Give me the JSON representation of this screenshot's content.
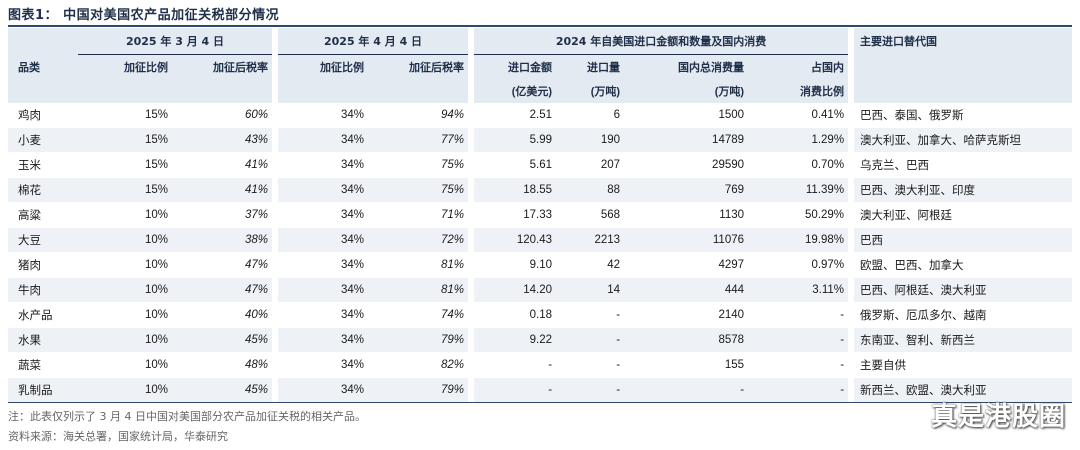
{
  "title": "图表1：  中国对美国农产品加征关税部分情况",
  "header": {
    "category": "品类",
    "group_mar4": "2025 年 3 月 4 日",
    "group_apr4": "2025 年 4 月 4 日",
    "group_2024": "2024 年自美国进口金额和数量及国内消费",
    "alternatives": "主要进口替代国",
    "tariff_rate": "加征比例",
    "post_tariff_rate": "加征后税率",
    "import_value_1": "进口金额",
    "import_value_2": "(亿美元)",
    "import_volume_1": "进口量",
    "import_volume_2": "(万吨)",
    "domestic_consumption_1": "国内总消费量",
    "domestic_consumption_2": "(万吨)",
    "consumption_share_1": "占国内",
    "consumption_share_2": "消费比例"
  },
  "rows": [
    {
      "category": "鸡肉",
      "mar_rate": "15%",
      "mar_total": "60%",
      "apr_rate": "34%",
      "apr_total": "94%",
      "import_value": "2.51",
      "import_volume": "6",
      "consumption": "1500",
      "share": "0.41%",
      "alternatives": "巴西、泰国、俄罗斯"
    },
    {
      "category": "小麦",
      "mar_rate": "15%",
      "mar_total": "43%",
      "apr_rate": "34%",
      "apr_total": "77%",
      "import_value": "5.99",
      "import_volume": "190",
      "consumption": "14789",
      "share": "1.29%",
      "alternatives": "澳大利亚、加拿大、哈萨克斯坦"
    },
    {
      "category": "玉米",
      "mar_rate": "15%",
      "mar_total": "41%",
      "apr_rate": "34%",
      "apr_total": "75%",
      "import_value": "5.61",
      "import_volume": "207",
      "consumption": "29590",
      "share": "0.70%",
      "alternatives": "乌克兰、巴西"
    },
    {
      "category": "棉花",
      "mar_rate": "15%",
      "mar_total": "41%",
      "apr_rate": "34%",
      "apr_total": "75%",
      "import_value": "18.55",
      "import_volume": "88",
      "consumption": "769",
      "share": "11.39%",
      "alternatives": "巴西、澳大利亚、印度"
    },
    {
      "category": "高粱",
      "mar_rate": "10%",
      "mar_total": "37%",
      "apr_rate": "34%",
      "apr_total": "71%",
      "import_value": "17.33",
      "import_volume": "568",
      "consumption": "1130",
      "share": "50.29%",
      "alternatives": "澳大利亚、阿根廷"
    },
    {
      "category": "大豆",
      "mar_rate": "10%",
      "mar_total": "38%",
      "apr_rate": "34%",
      "apr_total": "72%",
      "import_value": "120.43",
      "import_volume": "2213",
      "consumption": "11076",
      "share": "19.98%",
      "alternatives": "巴西"
    },
    {
      "category": "猪肉",
      "mar_rate": "10%",
      "mar_total": "47%",
      "apr_rate": "34%",
      "apr_total": "81%",
      "import_value": "9.10",
      "import_volume": "42",
      "consumption": "4297",
      "share": "0.97%",
      "alternatives": "欧盟、巴西、加拿大"
    },
    {
      "category": "牛肉",
      "mar_rate": "10%",
      "mar_total": "47%",
      "apr_rate": "34%",
      "apr_total": "81%",
      "import_value": "14.20",
      "import_volume": "14",
      "consumption": "444",
      "share": "3.11%",
      "alternatives": "巴西、阿根廷、澳大利亚"
    },
    {
      "category": "水产品",
      "mar_rate": "10%",
      "mar_total": "40%",
      "apr_rate": "34%",
      "apr_total": "74%",
      "import_value": "0.18",
      "import_volume": "-",
      "consumption": "2140",
      "share": "-",
      "alternatives": "俄罗斯、厄瓜多尔、越南"
    },
    {
      "category": "水果",
      "mar_rate": "10%",
      "mar_total": "45%",
      "apr_rate": "34%",
      "apr_total": "79%",
      "import_value": "9.22",
      "import_volume": "-",
      "consumption": "8578",
      "share": "-",
      "alternatives": "东南亚、智利、新西兰"
    },
    {
      "category": "蔬菜",
      "mar_rate": "10%",
      "mar_total": "48%",
      "apr_rate": "34%",
      "apr_total": "82%",
      "import_value": "-",
      "import_volume": "-",
      "consumption": "155",
      "share": "-",
      "alternatives": "主要自供"
    },
    {
      "category": "乳制品",
      "mar_rate": "10%",
      "mar_total": "45%",
      "apr_rate": "34%",
      "apr_total": "79%",
      "import_value": "-",
      "import_volume": "-",
      "consumption": "-",
      "share": "-",
      "alternatives": "新西兰、欧盟、澳大利亚"
    }
  ],
  "notes": {
    "note": "注：此表仅列示了 3 月 4 日中国对美国部分农产品加征关税的相关产品。",
    "source": "资料来源：海关总署，国家统计局，华泰研究"
  },
  "watermark": "真是港股圈"
}
